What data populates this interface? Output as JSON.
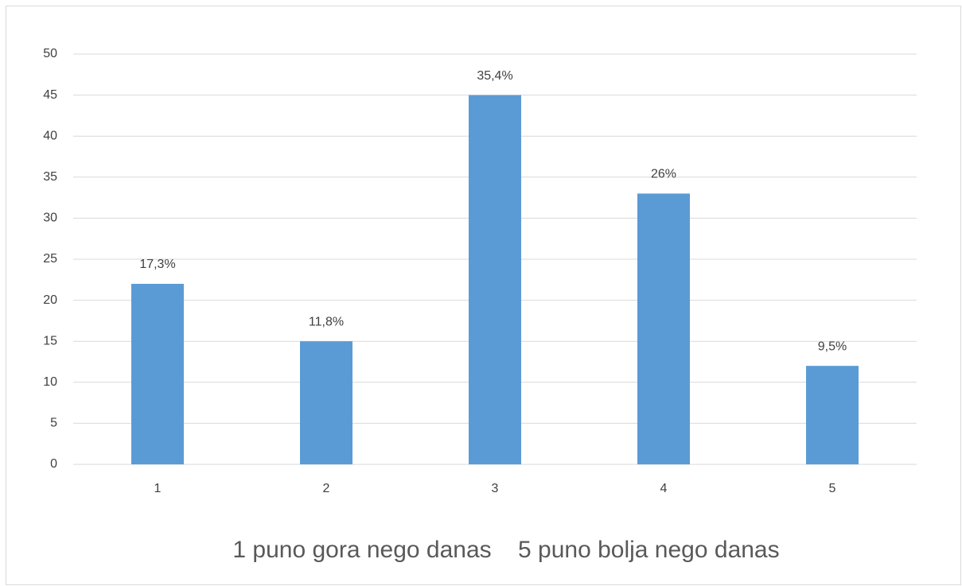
{
  "chart_data": {
    "type": "bar",
    "categories": [
      "1",
      "2",
      "3",
      "4",
      "5"
    ],
    "values": [
      22,
      15,
      45,
      33,
      12
    ],
    "annotations": [
      "17,3%",
      "11,8%",
      "35,4%",
      "26%",
      "9,5%"
    ],
    "color": "#5b9bd5",
    "xlabel": "1 puno gora nego danas    5 puno bolja nego danas",
    "ylim": [
      0,
      50
    ],
    "yticks": [
      0,
      5,
      10,
      15,
      20,
      25,
      30,
      35,
      40,
      45,
      50
    ],
    "grid": true
  }
}
